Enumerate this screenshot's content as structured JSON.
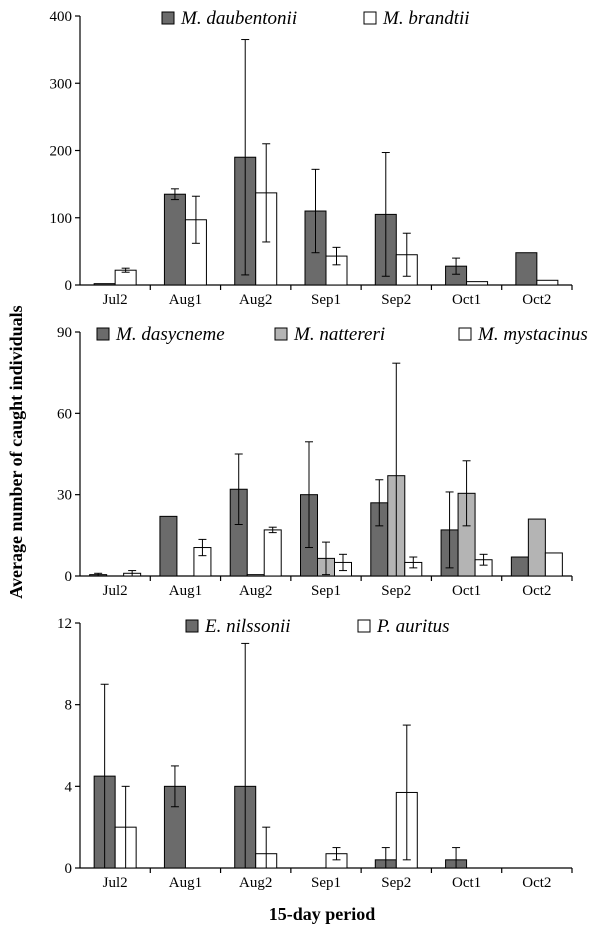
{
  "figure": {
    "ylabel": "Average number of caught individuals",
    "xlabel": "15-day period"
  },
  "colors": {
    "dark": "#6b6b6b",
    "light": "#b4b4b4",
    "white": "#ffffff"
  },
  "chart_data": [
    {
      "type": "bar",
      "categories": [
        "Jul2",
        "Aug1",
        "Aug2",
        "Sep1",
        "Sep2",
        "Oct1",
        "Oct2"
      ],
      "ylim": [
        0,
        400
      ],
      "yticks": [
        "0",
        "100",
        "200",
        "300",
        "400"
      ],
      "legend_position": "top",
      "series": [
        {
          "name": "M. daubentonii",
          "color": "dark",
          "values": [
            2,
            135,
            190,
            110,
            105,
            28,
            48
          ],
          "errors": [
            0,
            8,
            175,
            62,
            92,
            12,
            0
          ]
        },
        {
          "name": "M. brandtii",
          "color": "white",
          "values": [
            22,
            97,
            137,
            43,
            45,
            5,
            7
          ],
          "errors": [
            3,
            35,
            73,
            13,
            32,
            0,
            0
          ]
        }
      ]
    },
    {
      "type": "bar",
      "categories": [
        "Jul2",
        "Aug1",
        "Aug2",
        "Sep1",
        "Sep2",
        "Oct1",
        "Oct2"
      ],
      "ylim": [
        0,
        90
      ],
      "yticks": [
        "0",
        "30",
        "60",
        "90"
      ],
      "legend_position": "top",
      "series": [
        {
          "name": "M. dasycneme",
          "color": "dark",
          "values": [
            0.5,
            22,
            32,
            30,
            27,
            17,
            7
          ],
          "errors": [
            0.5,
            0,
            13,
            19.5,
            8.5,
            14,
            0
          ]
        },
        {
          "name": "M. nattereri",
          "color": "light",
          "values": [
            0,
            0,
            0.5,
            6.5,
            37,
            30.5,
            21
          ],
          "errors": [
            0,
            0,
            0,
            6,
            41.5,
            12,
            0
          ]
        },
        {
          "name": "M. mystacinus",
          "color": "white",
          "values": [
            1,
            10.5,
            17,
            5,
            5,
            6,
            8.5
          ],
          "errors": [
            1,
            3,
            1,
            3,
            2,
            2,
            0
          ]
        }
      ]
    },
    {
      "type": "bar",
      "categories": [
        "Jul2",
        "Aug1",
        "Aug2",
        "Sep1",
        "Sep2",
        "Oct1",
        "Oct2"
      ],
      "ylim": [
        0,
        12
      ],
      "yticks": [
        "0",
        "4",
        "8",
        "12"
      ],
      "legend_position": "top",
      "series": [
        {
          "name": "E. nilssonii",
          "color": "dark",
          "values": [
            4.5,
            4,
            4,
            0,
            0.4,
            0.4,
            0
          ],
          "errors": [
            4.5,
            1,
            7,
            0,
            0.6,
            0.6,
            0
          ]
        },
        {
          "name": "P. auritus",
          "color": "white",
          "values": [
            2,
            0,
            0.7,
            0.7,
            3.7,
            0,
            0
          ],
          "errors": [
            2,
            0,
            1.3,
            0.3,
            3.3,
            0,
            0
          ]
        }
      ]
    }
  ]
}
